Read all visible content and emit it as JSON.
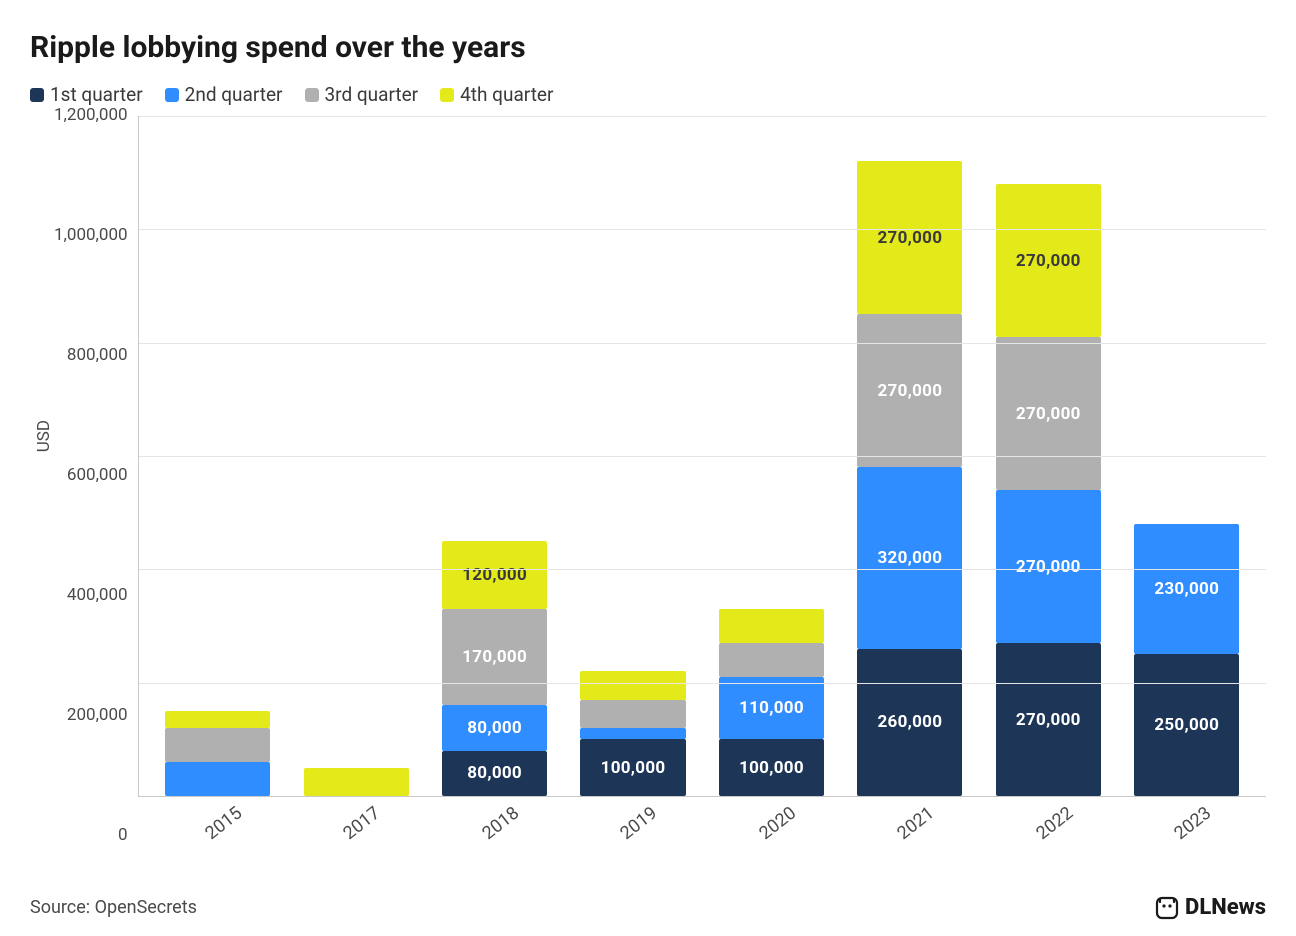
{
  "title": "Ripple lobbying spend over the years",
  "title_fontsize": 30,
  "legend_fontsize": 19,
  "axis_label_fontsize": 17,
  "tick_fontsize": 17,
  "xlabel_fontsize": 18,
  "seg_label_fontsize": 17,
  "source_fontsize": 18,
  "brand_fontsize": 22,
  "ylabel": "USD",
  "source": "Source: OpenSecrets",
  "brand": "DLNews",
  "background_color": "#ffffff",
  "grid_color": "#e6e6e6",
  "axis_color": "#c9c9c9",
  "text_color": "#3a3a3a",
  "chart": {
    "type": "stacked-bar",
    "y_min": 0,
    "y_max": 1200000,
    "y_tick_step": 200000,
    "y_ticks": [
      "1,200,000",
      "1,000,000",
      "800,000",
      "600,000",
      "400,000",
      "200,000",
      "0"
    ],
    "bar_width_ratio": 0.76,
    "series": [
      {
        "key": "q1",
        "label": "1st quarter",
        "color": "#1d3557"
      },
      {
        "key": "q2",
        "label": "2nd quarter",
        "color": "#2f8dff"
      },
      {
        "key": "q3",
        "label": "3rd quarter",
        "color": "#b0b0b0"
      },
      {
        "key": "q4",
        "label": "4th quarter",
        "color": "#e4ea1a"
      }
    ],
    "categories": [
      "2015",
      "2017",
      "2018",
      "2019",
      "2020",
      "2021",
      "2022",
      "2023"
    ],
    "data": [
      {
        "year": "2015",
        "q1": 0,
        "q2": 60000,
        "q3": 60000,
        "q4": 30000,
        "labels": {}
      },
      {
        "year": "2017",
        "q1": 0,
        "q2": 0,
        "q3": 0,
        "q4": 50000,
        "labels": {}
      },
      {
        "year": "2018",
        "q1": 80000,
        "q2": 80000,
        "q3": 170000,
        "q4": 120000,
        "labels": {
          "q1": "80,000",
          "q2": "80,000",
          "q3": "170,000",
          "q4": "120,000"
        }
      },
      {
        "year": "2019",
        "q1": 100000,
        "q2": 20000,
        "q3": 50000,
        "q4": 50000,
        "labels": {
          "q1": "100,000"
        }
      },
      {
        "year": "2020",
        "q1": 100000,
        "q2": 110000,
        "q3": 60000,
        "q4": 60000,
        "labels": {
          "q1": "100,000",
          "q2": "110,000"
        }
      },
      {
        "year": "2021",
        "q1": 260000,
        "q2": 320000,
        "q3": 270000,
        "q4": 270000,
        "labels": {
          "q1": "260,000",
          "q2": "320,000",
          "q3": "270,000",
          "q4": "270,000"
        }
      },
      {
        "year": "2022",
        "q1": 270000,
        "q2": 270000,
        "q3": 270000,
        "q4": 270000,
        "labels": {
          "q1": "270,000",
          "q2": "270,000",
          "q3": "270,000",
          "q4": "270,000"
        }
      },
      {
        "year": "2023",
        "q1": 250000,
        "q2": 230000,
        "q3": 0,
        "q4": 0,
        "labels": {
          "q1": "250,000",
          "q2": "230,000"
        }
      }
    ],
    "label_color_by_series": {
      "q1": "#ffffff",
      "q2": "#ffffff",
      "q3": "#ffffff",
      "q4": "#3a3a3a"
    }
  }
}
